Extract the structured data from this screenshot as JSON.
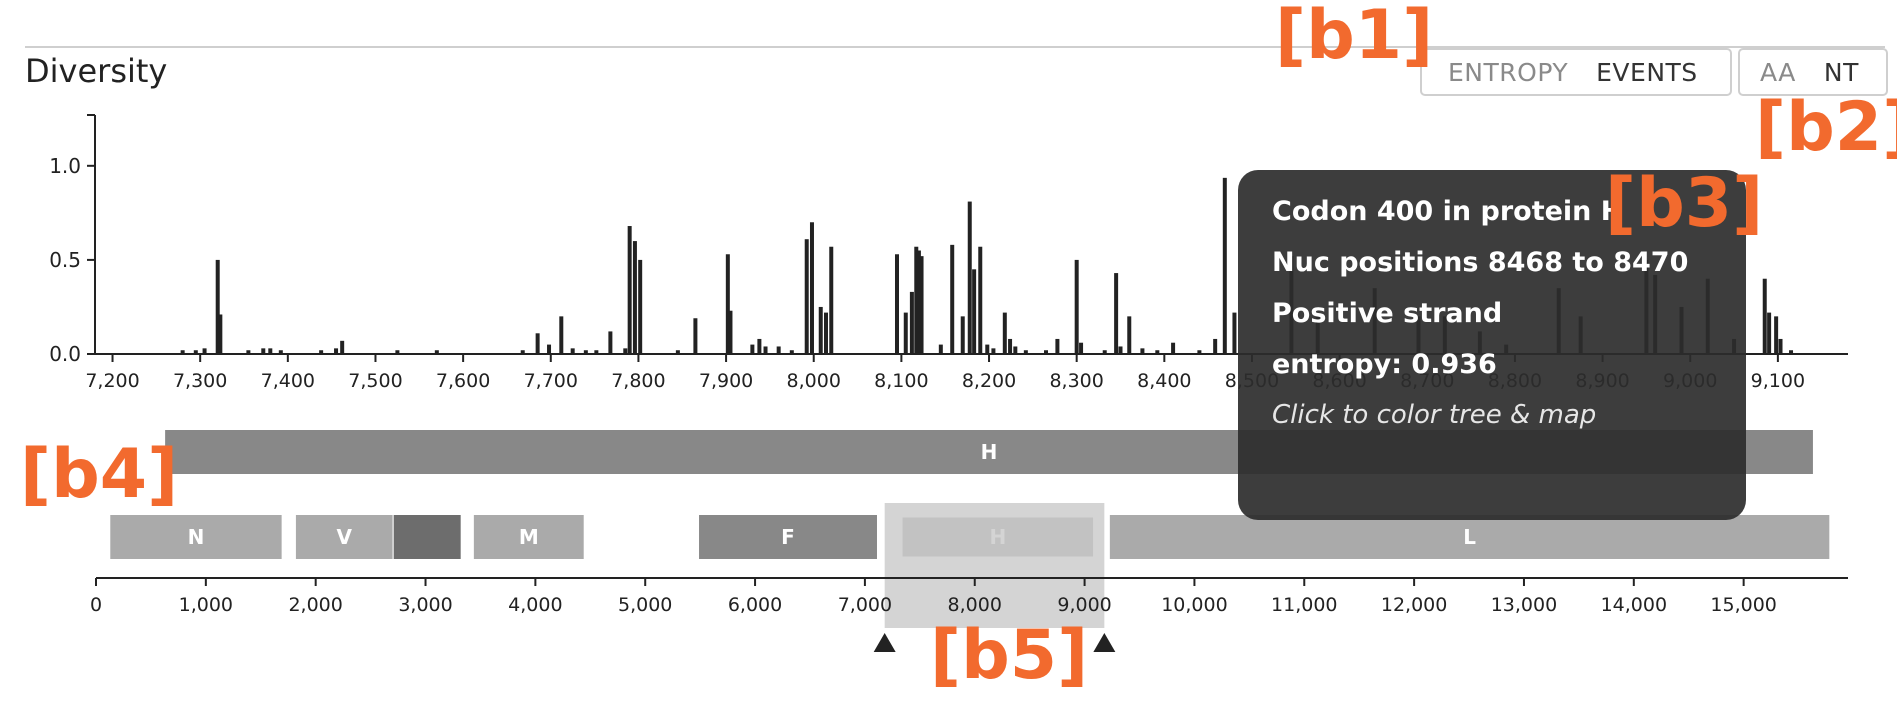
{
  "panel": {
    "title": "Diversity"
  },
  "metric_toggle": {
    "options": [
      {
        "label": "ENTROPY",
        "active": false
      },
      {
        "label": "EVENTS",
        "active": true
      }
    ]
  },
  "mutation_type_toggle": {
    "options": [
      {
        "label": "AA",
        "active": false
      },
      {
        "label": "NT",
        "active": true
      }
    ]
  },
  "callouts": {
    "b1": "[b1]",
    "b2": "[b2]",
    "b3": "[b3]",
    "b4": "[b4]",
    "b5": "[b5]"
  },
  "colors": {
    "callout": "#f26a2e",
    "bar": "#222222",
    "gene_dark": "#888888",
    "gene_light": "#aaaaaa",
    "gene_darkest": "#6d6d6d",
    "tooltip_bg": "#2d2d2d"
  },
  "tooltip": {
    "codon": "Codon 400 in protein H",
    "positions": "Nuc positions 8468 to 8470",
    "strand": "Positive strand",
    "entropy": "entropy: 0.936",
    "hint": "Click to color tree & map"
  },
  "zoomed_genes": [
    {
      "label": "H",
      "start": 7260,
      "end": 9140
    }
  ],
  "genome_genes": [
    {
      "label": "N",
      "start": 130,
      "end": 1690,
      "shade": "light"
    },
    {
      "label": "V",
      "start": 1820,
      "end": 2700,
      "shade": "light"
    },
    {
      "label": "",
      "start": 2710,
      "end": 3320,
      "shade": "darkest"
    },
    {
      "label": "M",
      "start": 3440,
      "end": 4440,
      "shade": "light"
    },
    {
      "label": "F",
      "start": 5490,
      "end": 7110,
      "shade": "dark"
    },
    {
      "label": "H",
      "start": 7320,
      "end": 9100,
      "shade": "dark"
    },
    {
      "label": "L",
      "start": 9230,
      "end": 15780,
      "shade": "light"
    }
  ],
  "chart_data": {
    "type": "bar",
    "title": "Diversity",
    "ylabel": "",
    "xlabel": "",
    "ylim": [
      0,
      1.27
    ],
    "xlim": [
      7180,
      9180
    ],
    "y_ticks": [
      "0.0",
      "0.5",
      "1.0"
    ],
    "y_tick_values": [
      0,
      0.5,
      1.0
    ],
    "x_ticks": [
      "7,200",
      "7,300",
      "7,400",
      "7,500",
      "7,600",
      "7,700",
      "7,800",
      "7,900",
      "8,000",
      "8,100",
      "8,200",
      "8,300",
      "8,400",
      "8,500",
      "8,600",
      "8,700",
      "8,800",
      "8,900",
      "9,000",
      "9,100"
    ],
    "x_tick_values": [
      7200,
      7300,
      7400,
      7500,
      7600,
      7700,
      7800,
      7900,
      8000,
      8100,
      8200,
      8300,
      8400,
      8500,
      8600,
      8700,
      8800,
      8900,
      9000,
      9100
    ],
    "bars": [
      {
        "x": 7280,
        "y": 0.02
      },
      {
        "x": 7295,
        "y": 0.02
      },
      {
        "x": 7305,
        "y": 0.03
      },
      {
        "x": 7320,
        "y": 0.5
      },
      {
        "x": 7323,
        "y": 0.21
      },
      {
        "x": 7355,
        "y": 0.02
      },
      {
        "x": 7372,
        "y": 0.03
      },
      {
        "x": 7380,
        "y": 0.03
      },
      {
        "x": 7392,
        "y": 0.02
      },
      {
        "x": 7438,
        "y": 0.02
      },
      {
        "x": 7455,
        "y": 0.03
      },
      {
        "x": 7462,
        "y": 0.07
      },
      {
        "x": 7525,
        "y": 0.02
      },
      {
        "x": 7570,
        "y": 0.02
      },
      {
        "x": 7668,
        "y": 0.02
      },
      {
        "x": 7685,
        "y": 0.11
      },
      {
        "x": 7698,
        "y": 0.05
      },
      {
        "x": 7712,
        "y": 0.2
      },
      {
        "x": 7725,
        "y": 0.03
      },
      {
        "x": 7740,
        "y": 0.02
      },
      {
        "x": 7752,
        "y": 0.02
      },
      {
        "x": 7768,
        "y": 0.12
      },
      {
        "x": 7785,
        "y": 0.03
      },
      {
        "x": 7790,
        "y": 0.68
      },
      {
        "x": 7796,
        "y": 0.6
      },
      {
        "x": 7802,
        "y": 0.5
      },
      {
        "x": 7845,
        "y": 0.02
      },
      {
        "x": 7865,
        "y": 0.19
      },
      {
        "x": 7902,
        "y": 0.53
      },
      {
        "x": 7905,
        "y": 0.23
      },
      {
        "x": 7930,
        "y": 0.05
      },
      {
        "x": 7938,
        "y": 0.08
      },
      {
        "x": 7945,
        "y": 0.04
      },
      {
        "x": 7960,
        "y": 0.04
      },
      {
        "x": 7975,
        "y": 0.02
      },
      {
        "x": 7992,
        "y": 0.61
      },
      {
        "x": 7998,
        "y": 0.7
      },
      {
        "x": 8008,
        "y": 0.25
      },
      {
        "x": 8014,
        "y": 0.22
      },
      {
        "x": 8020,
        "y": 0.57
      },
      {
        "x": 8095,
        "y": 0.53
      },
      {
        "x": 8105,
        "y": 0.22
      },
      {
        "x": 8112,
        "y": 0.33
      },
      {
        "x": 8117,
        "y": 0.57
      },
      {
        "x": 8120,
        "y": 0.55
      },
      {
        "x": 8123,
        "y": 0.52
      },
      {
        "x": 8145,
        "y": 0.05
      },
      {
        "x": 8158,
        "y": 0.58
      },
      {
        "x": 8170,
        "y": 0.2
      },
      {
        "x": 8178,
        "y": 0.81
      },
      {
        "x": 8183,
        "y": 0.45
      },
      {
        "x": 8190,
        "y": 0.57
      },
      {
        "x": 8198,
        "y": 0.05
      },
      {
        "x": 8205,
        "y": 0.03
      },
      {
        "x": 8218,
        "y": 0.22
      },
      {
        "x": 8224,
        "y": 0.08
      },
      {
        "x": 8230,
        "y": 0.04
      },
      {
        "x": 8242,
        "y": 0.02
      },
      {
        "x": 8265,
        "y": 0.02
      },
      {
        "x": 8278,
        "y": 0.08
      },
      {
        "x": 8300,
        "y": 0.5
      },
      {
        "x": 8305,
        "y": 0.06
      },
      {
        "x": 8332,
        "y": 0.02
      },
      {
        "x": 8345,
        "y": 0.43
      },
      {
        "x": 8350,
        "y": 0.04
      },
      {
        "x": 8360,
        "y": 0.2
      },
      {
        "x": 8375,
        "y": 0.03
      },
      {
        "x": 8392,
        "y": 0.02
      },
      {
        "x": 8410,
        "y": 0.06
      },
      {
        "x": 8440,
        "y": 0.02
      },
      {
        "x": 8458,
        "y": 0.08
      },
      {
        "x": 8469,
        "y": 0.936
      },
      {
        "x": 8480,
        "y": 0.22
      },
      {
        "x": 8545,
        "y": 0.52
      },
      {
        "x": 8575,
        "y": 0.2
      },
      {
        "x": 8640,
        "y": 0.35
      },
      {
        "x": 8690,
        "y": 0.2
      },
      {
        "x": 8720,
        "y": 0.2
      },
      {
        "x": 8760,
        "y": 0.12
      },
      {
        "x": 8790,
        "y": 0.05
      },
      {
        "x": 8850,
        "y": 0.35
      },
      {
        "x": 8875,
        "y": 0.2
      },
      {
        "x": 8950,
        "y": 0.5
      },
      {
        "x": 8960,
        "y": 0.42
      },
      {
        "x": 8990,
        "y": 0.25
      },
      {
        "x": 9020,
        "y": 0.4
      },
      {
        "x": 9050,
        "y": 0.08
      },
      {
        "x": 9085,
        "y": 0.4
      },
      {
        "x": 9090,
        "y": 0.22
      },
      {
        "x": 9098,
        "y": 0.2
      },
      {
        "x": 9103,
        "y": 0.08
      },
      {
        "x": 9115,
        "y": 0.02
      }
    ],
    "genome_x_ticks": [
      "0",
      "1,000",
      "2,000",
      "3,000",
      "4,000",
      "5,000",
      "6,000",
      "7,000",
      "8,000",
      "9,000",
      "10,000",
      "11,000",
      "12,000",
      "13,000",
      "14,000",
      "15,000"
    ],
    "genome_x_tick_values": [
      0,
      1000,
      2000,
      3000,
      4000,
      5000,
      6000,
      7000,
      8000,
      9000,
      10000,
      11000,
      12000,
      13000,
      14000,
      15000
    ],
    "genome_xlim": [
      0,
      15950
    ],
    "brush_range": [
      7180,
      9180
    ]
  }
}
